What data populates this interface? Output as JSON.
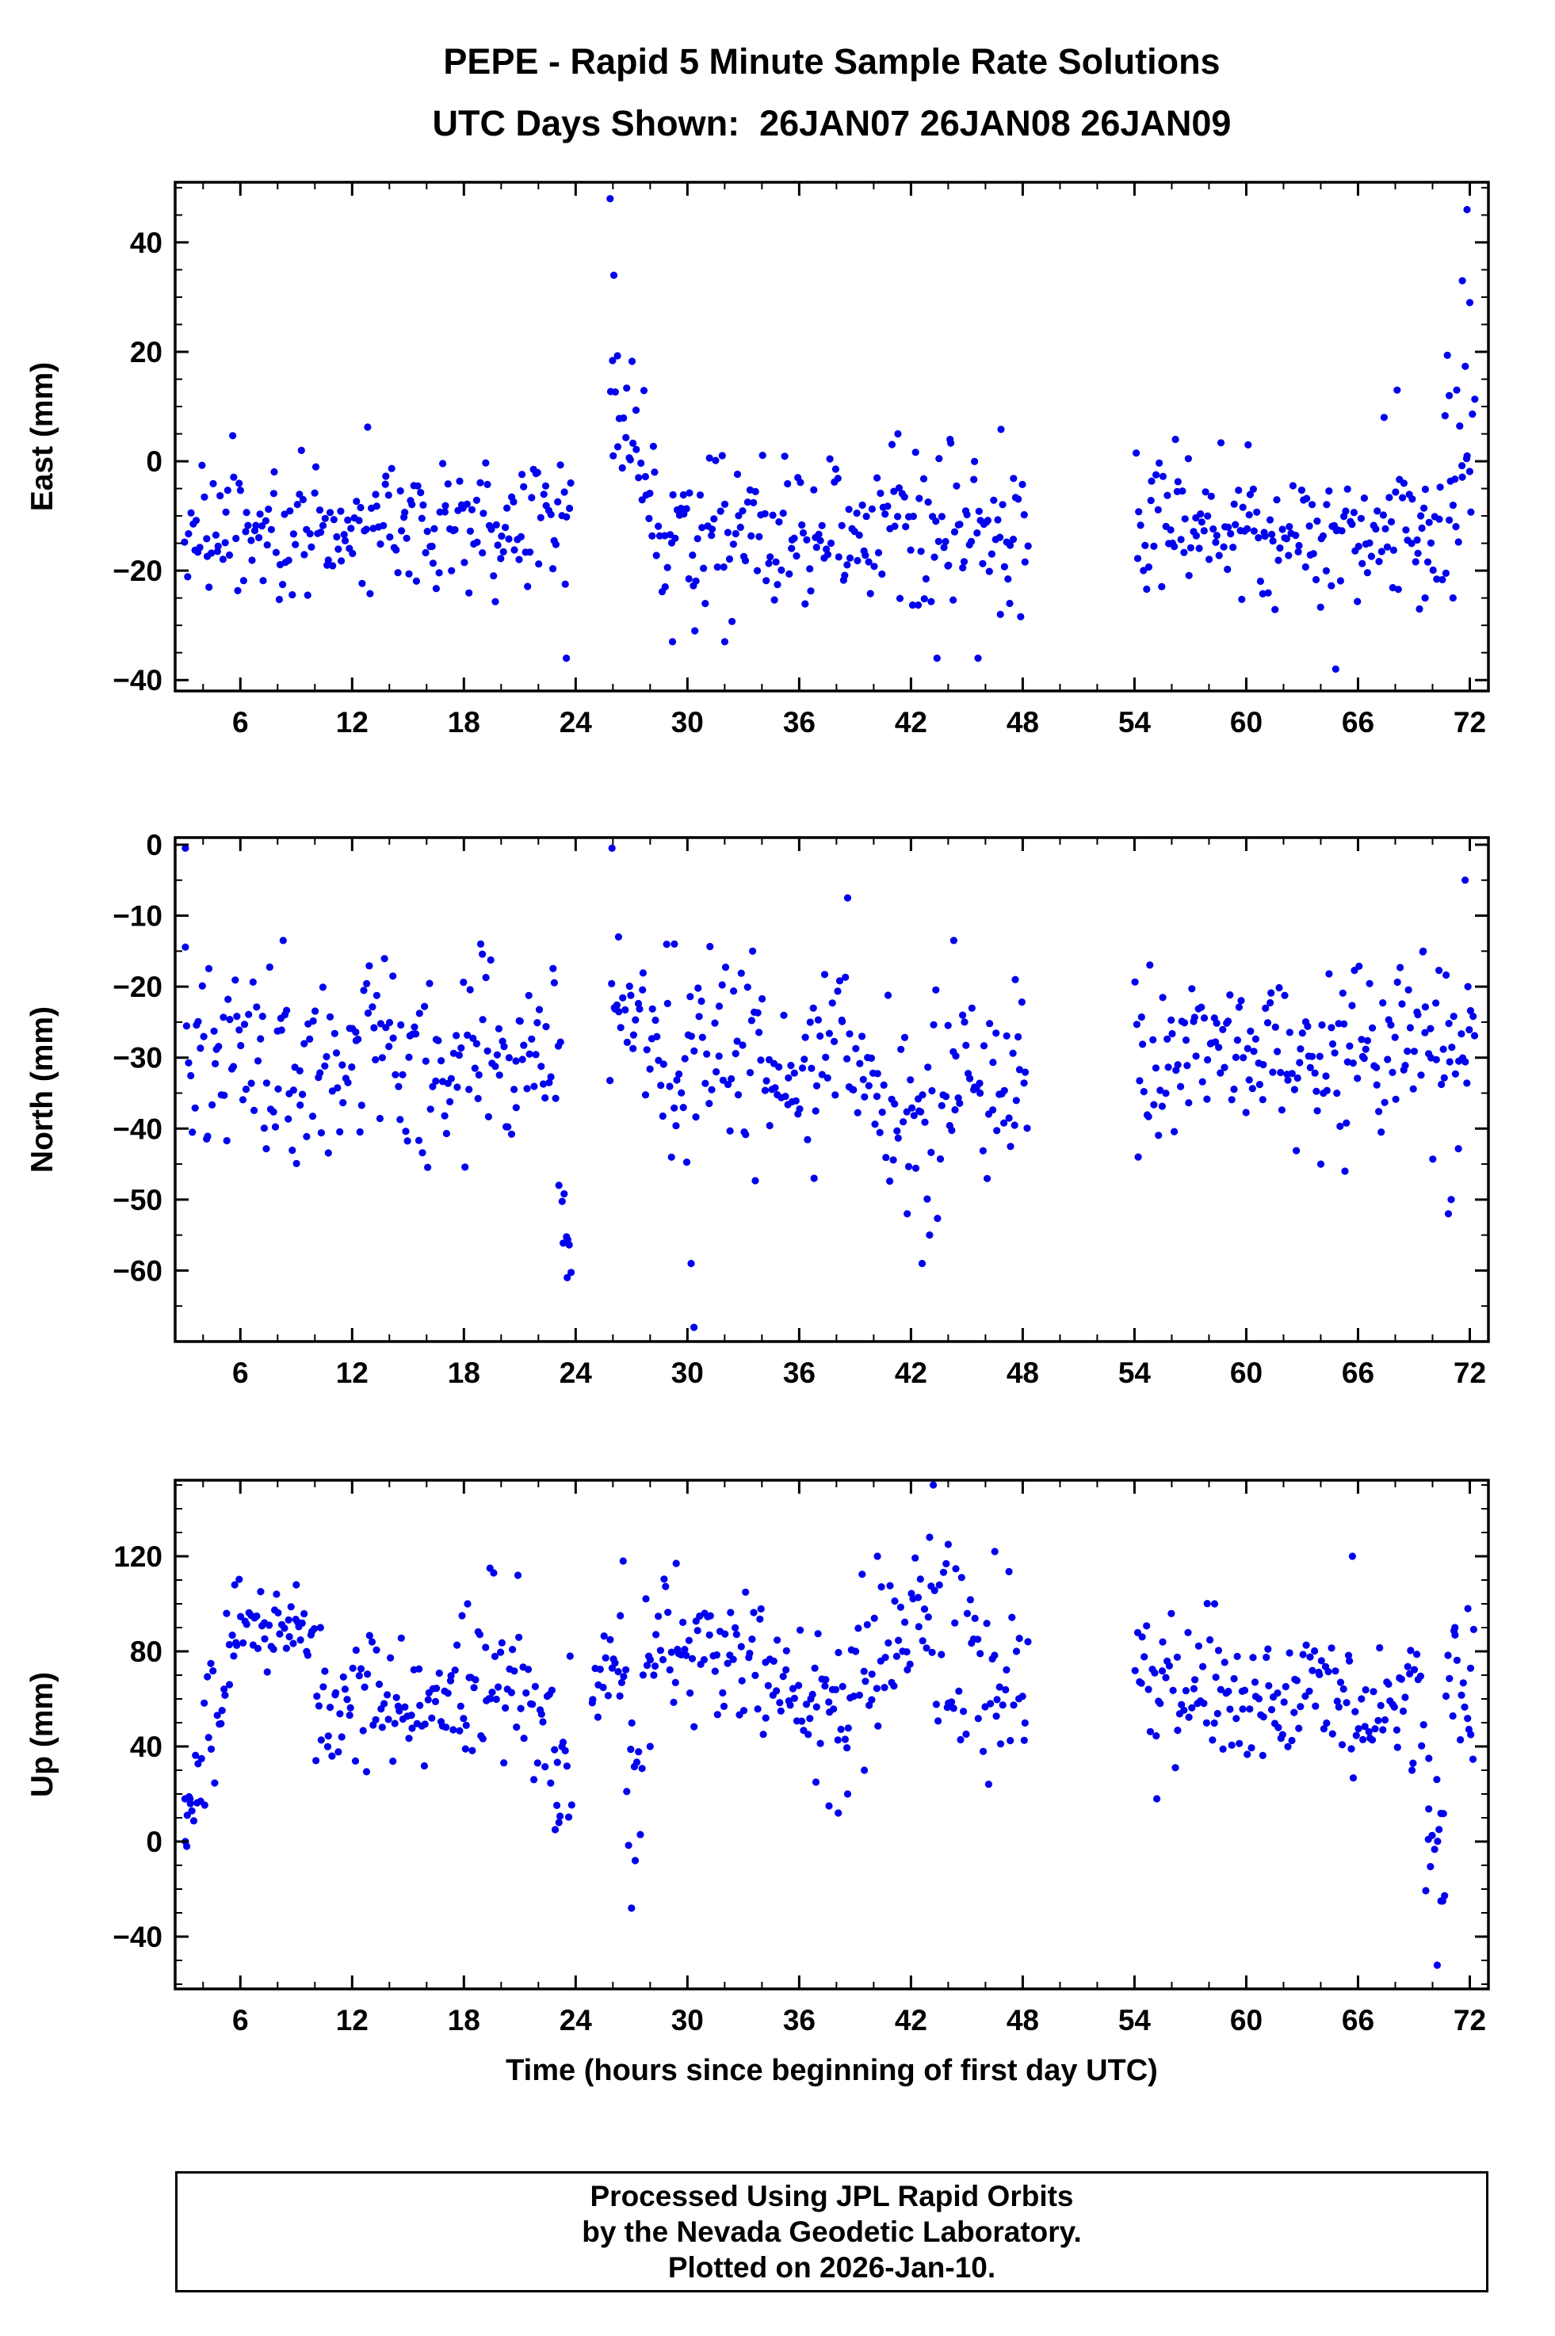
{
  "title": {
    "line1": "PEPE - Rapid 5 Minute Sample Rate Solutions",
    "line2": "UTC Days Shown:  26JAN07 26JAN08 26JAN09"
  },
  "xlabel": "Time (hours since beginning of first day UTC)",
  "footer": {
    "line1": "Processed Using JPL Rapid Orbits",
    "line2": "by the Nevada Geodetic Laboratory.",
    "line3": "Plotted on 2026-Jan-10."
  },
  "colors": {
    "point": "#0000ee",
    "frame": "#000000",
    "text": "#000000",
    "background": "#ffffff"
  },
  "chart_data": [
    {
      "type": "scatter",
      "id": "east",
      "ylabel": "East (mm)",
      "xlim": [
        2.5,
        73.0
      ],
      "ylim": [
        -42,
        51
      ],
      "xticks": [
        6,
        12,
        18,
        24,
        30,
        36,
        42,
        48,
        54,
        60,
        66,
        72
      ],
      "x_minor_step": 2,
      "yticks": [
        -40,
        -20,
        0,
        20,
        40
      ],
      "y_minor_step": 5,
      "description": "Dense 5-minute GPS East component scatter; three UTC days with gaps near hours 24-26 and 48-54; spike to +48 mm near hour 26 and +46 mm near hour 72; baseline about -12 mm.",
      "segments_format": [
        "t_start_hr",
        "t_end_hr",
        "mean_start_mm",
        "mean_end_mm",
        "stddev_mm",
        "points_per_hour",
        "clamp_min_mm",
        "clamp_max_mm"
      ],
      "segments": [
        [
          3.0,
          23.8,
          -11,
          -11,
          6,
          10,
          -27,
          8
        ],
        [
          25.8,
          28.5,
          16,
          -8,
          7,
          11,
          -18,
          36
        ],
        [
          28.5,
          48.3,
          -12,
          -12,
          7,
          10,
          -30,
          6
        ],
        [
          54.0,
          70.6,
          -13,
          -13,
          6,
          10,
          -28,
          5
        ],
        [
          70.6,
          72.3,
          -8,
          2,
          10,
          11,
          -30,
          30
        ]
      ],
      "outliers": [
        [
          25.85,
          48
        ],
        [
          26.05,
          34
        ],
        [
          29.2,
          -33
        ],
        [
          30.4,
          -31
        ],
        [
          32.0,
          -33
        ],
        [
          41.3,
          5
        ],
        [
          43.4,
          -36
        ],
        [
          44.1,
          4
        ],
        [
          45.6,
          -36
        ],
        [
          46.8,
          -28
        ],
        [
          47.3,
          -26
        ],
        [
          56.2,
          4
        ],
        [
          60.1,
          3
        ],
        [
          64.8,
          -38
        ],
        [
          67.4,
          8
        ],
        [
          68.1,
          13
        ],
        [
          69.3,
          -27
        ],
        [
          69.6,
          -25
        ],
        [
          70.9,
          12
        ],
        [
          71.1,
          -25
        ],
        [
          71.3,
          13
        ],
        [
          71.6,
          33
        ],
        [
          71.85,
          46
        ],
        [
          72.0,
          29
        ],
        [
          23.5,
          -36
        ]
      ]
    },
    {
      "type": "scatter",
      "id": "north",
      "ylabel": "North (mm)",
      "xlim": [
        2.5,
        73.0
      ],
      "ylim": [
        -70,
        1
      ],
      "xticks": [
        6,
        12,
        18,
        24,
        30,
        36,
        42,
        48,
        54,
        60,
        66,
        72
      ],
      "x_minor_step": 2,
      "yticks": [
        0,
        -10,
        -20,
        -30,
        -40,
        -50,
        -60
      ],
      "y_minor_step": 5,
      "description": "North component scatter; baseline about -30 mm; near-zero outliers at start of day 1 and day 2; dips to -61 mm near hour 23, -68 mm near hour 30, -59 mm near hour 42.",
      "segments_format": [
        "t_start_hr",
        "t_end_hr",
        "mean_start_mm",
        "mean_end_mm",
        "stddev_mm",
        "points_per_hour",
        "clamp_min_mm",
        "clamp_max_mm"
      ],
      "segments": [
        [
          3.0,
          23.2,
          -30,
          -30,
          7,
          10,
          -46,
          -14
        ],
        [
          23.2,
          23.8,
          -52,
          -56,
          3,
          12,
          -62,
          -44
        ],
        [
          25.8,
          28.0,
          -22,
          -26,
          6,
          10,
          -36,
          -12
        ],
        [
          28.0,
          40.0,
          -30,
          -31,
          7,
          10,
          -48,
          -13
        ],
        [
          40.0,
          48.3,
          -35,
          -34,
          8,
          10,
          -54,
          -18
        ],
        [
          54.0,
          72.3,
          -29,
          -29,
          6,
          10,
          -45,
          -14
        ]
      ],
      "outliers": [
        [
          3.05,
          -0.5
        ],
        [
          8.3,
          -13.5
        ],
        [
          18.9,
          -14
        ],
        [
          23.1,
          -48
        ],
        [
          23.55,
          -61
        ],
        [
          25.95,
          -0.5
        ],
        [
          26.3,
          -13
        ],
        [
          29.3,
          -14
        ],
        [
          30.2,
          -59
        ],
        [
          30.35,
          -68
        ],
        [
          33.5,
          -15
        ],
        [
          36.8,
          -47
        ],
        [
          38.6,
          -7.5
        ],
        [
          41.8,
          -52
        ],
        [
          42.6,
          -59
        ],
        [
          43.0,
          -55
        ],
        [
          44.3,
          -13.5
        ],
        [
          47.6,
          -19
        ],
        [
          54.2,
          -44
        ],
        [
          64.0,
          -45
        ],
        [
          65.3,
          -46
        ],
        [
          69.5,
          -15
        ],
        [
          70.85,
          -52
        ],
        [
          71.0,
          -50
        ],
        [
          71.75,
          -5
        ],
        [
          71.9,
          -20
        ]
      ]
    },
    {
      "type": "scatter",
      "id": "up",
      "ylabel": "Up (mm)",
      "xlim": [
        2.5,
        73.0
      ],
      "ylim": [
        -62,
        152
      ],
      "xticks": [
        6,
        12,
        18,
        24,
        30,
        36,
        42,
        48,
        54,
        60,
        66,
        72
      ],
      "x_minor_step": 2,
      "yticks": [
        -40,
        0,
        40,
        80,
        120
      ],
      "y_minor_step": 10,
      "description": "Up component scatter; baseline about +60 mm with large scatter; rises from 0 at hour 3; peak outlier ~150 mm near hour 43; deep dip to -52 mm near hour 70.",
      "segments_format": [
        "t_start_hr",
        "t_end_hr",
        "mean_start_mm",
        "mean_end_mm",
        "stddev_mm",
        "points_per_hour",
        "clamp_min_mm",
        "clamp_max_mm"
      ],
      "segments": [
        [
          3.0,
          5.5,
          5,
          75,
          12,
          11,
          -8,
          105
        ],
        [
          5.5,
          10.0,
          85,
          85,
          11,
          10,
          58,
          112
        ],
        [
          10.0,
          18.5,
          57,
          57,
          13,
          10,
          26,
          88
        ],
        [
          18.5,
          21.5,
          68,
          68,
          15,
          10,
          32,
          105
        ],
        [
          21.5,
          23.8,
          42,
          45,
          18,
          10,
          4,
          80
        ],
        [
          24.8,
          26.7,
          70,
          72,
          13,
          10,
          40,
          100
        ],
        [
          26.7,
          27.6,
          25,
          20,
          18,
          10,
          -12,
          60
        ],
        [
          27.6,
          34.0,
          78,
          76,
          14,
          10,
          42,
          112
        ],
        [
          34.0,
          39.0,
          63,
          60,
          13,
          10,
          30,
          95
        ],
        [
          39.0,
          43.5,
          80,
          95,
          18,
          10,
          35,
          128
        ],
        [
          43.5,
          48.3,
          70,
          72,
          24,
          10,
          18,
          126
        ],
        [
          54.0,
          69.6,
          62,
          60,
          15,
          10,
          22,
          102
        ],
        [
          69.6,
          70.7,
          5,
          -5,
          14,
          11,
          -30,
          40
        ],
        [
          70.7,
          72.3,
          60,
          62,
          18,
          10,
          28,
          98
        ]
      ],
      "outliers": [
        [
          3.05,
          0
        ],
        [
          3.12,
          -2
        ],
        [
          3.3,
          18
        ],
        [
          5.7,
          108
        ],
        [
          9.0,
          108
        ],
        [
          10.3,
          90
        ],
        [
          17.9,
          95
        ],
        [
          18.2,
          100
        ],
        [
          19.4,
          115
        ],
        [
          19.6,
          113
        ],
        [
          20.9,
          112
        ],
        [
          22.9,
          5
        ],
        [
          23.1,
          8
        ],
        [
          23.7,
          78
        ],
        [
          26.4,
          95
        ],
        [
          26.55,
          118
        ],
        [
          27.0,
          -28
        ],
        [
          27.2,
          -8
        ],
        [
          28.0,
          40
        ],
        [
          29.4,
          117
        ],
        [
          36.9,
          25
        ],
        [
          37.6,
          15
        ],
        [
          38.1,
          12
        ],
        [
          38.6,
          20
        ],
        [
          39.5,
          30
        ],
        [
          40.2,
          120
        ],
        [
          43.0,
          128
        ],
        [
          43.2,
          150
        ],
        [
          44.0,
          125
        ],
        [
          46.5,
          122
        ],
        [
          55.2,
          18
        ],
        [
          58.3,
          100
        ],
        [
          65.7,
          120
        ],
        [
          68.9,
          30
        ],
        [
          69.8,
          35
        ],
        [
          70.25,
          -52
        ],
        [
          70.45,
          -25
        ],
        [
          70.55,
          -25
        ],
        [
          71.2,
          90
        ],
        [
          71.9,
          98
        ],
        [
          72.05,
          45
        ]
      ]
    }
  ]
}
